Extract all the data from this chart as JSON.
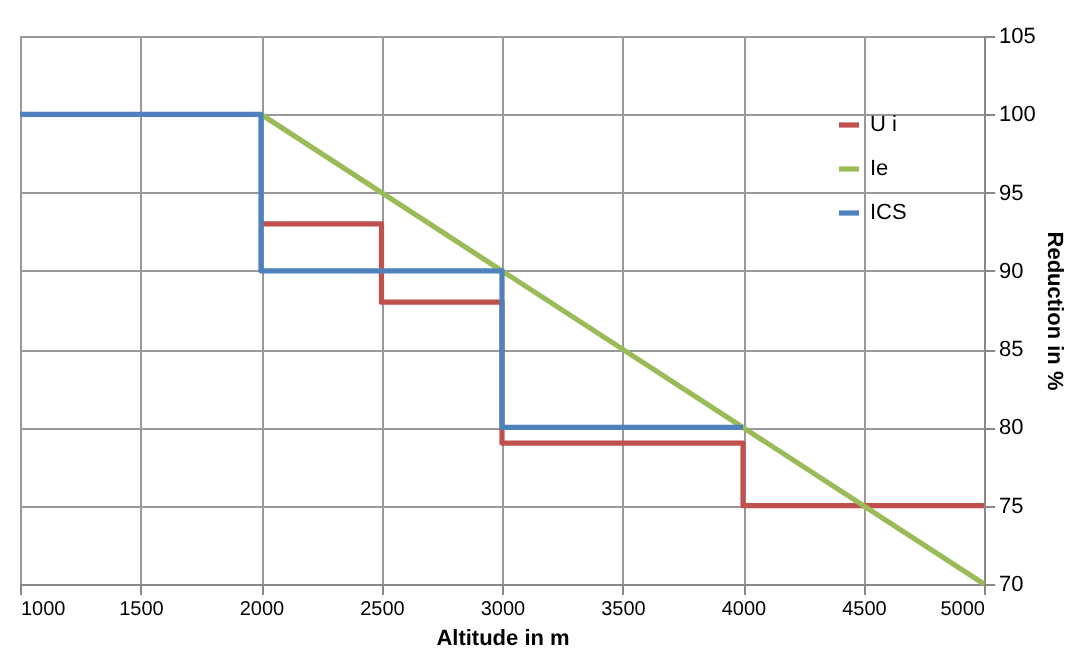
{
  "chart_data": {
    "type": "step",
    "xlabel": "Altitude in m",
    "ylabel": "Reduction in %",
    "xlim": [
      1000,
      5000
    ],
    "xticks": [
      1000,
      1500,
      2000,
      2500,
      3000,
      3500,
      4000,
      4500,
      5000
    ],
    "ylim": [
      70,
      105
    ],
    "yticks": [
      70,
      75,
      80,
      85,
      90,
      95,
      100,
      105
    ],
    "grid": true,
    "legend": "top right",
    "line_style": "solid",
    "marker": "none",
    "series": [
      {
        "name": "U i",
        "color": "#c0504d",
        "type": "step",
        "x": [
          2000,
          2500,
          3000,
          4000,
          5000
        ],
        "values": [
          93,
          88,
          79,
          75,
          75
        ]
      },
      {
        "name": "Ie",
        "color": "#9bbb59",
        "type": "line",
        "x": [
          2000,
          5000
        ],
        "values": [
          100,
          70
        ]
      },
      {
        "name": "ICS",
        "color": "#4f81bd",
        "type": "step",
        "x": [
          1000,
          2000,
          3000,
          4000
        ],
        "values": [
          100,
          90,
          80,
          80
        ]
      }
    ]
  }
}
